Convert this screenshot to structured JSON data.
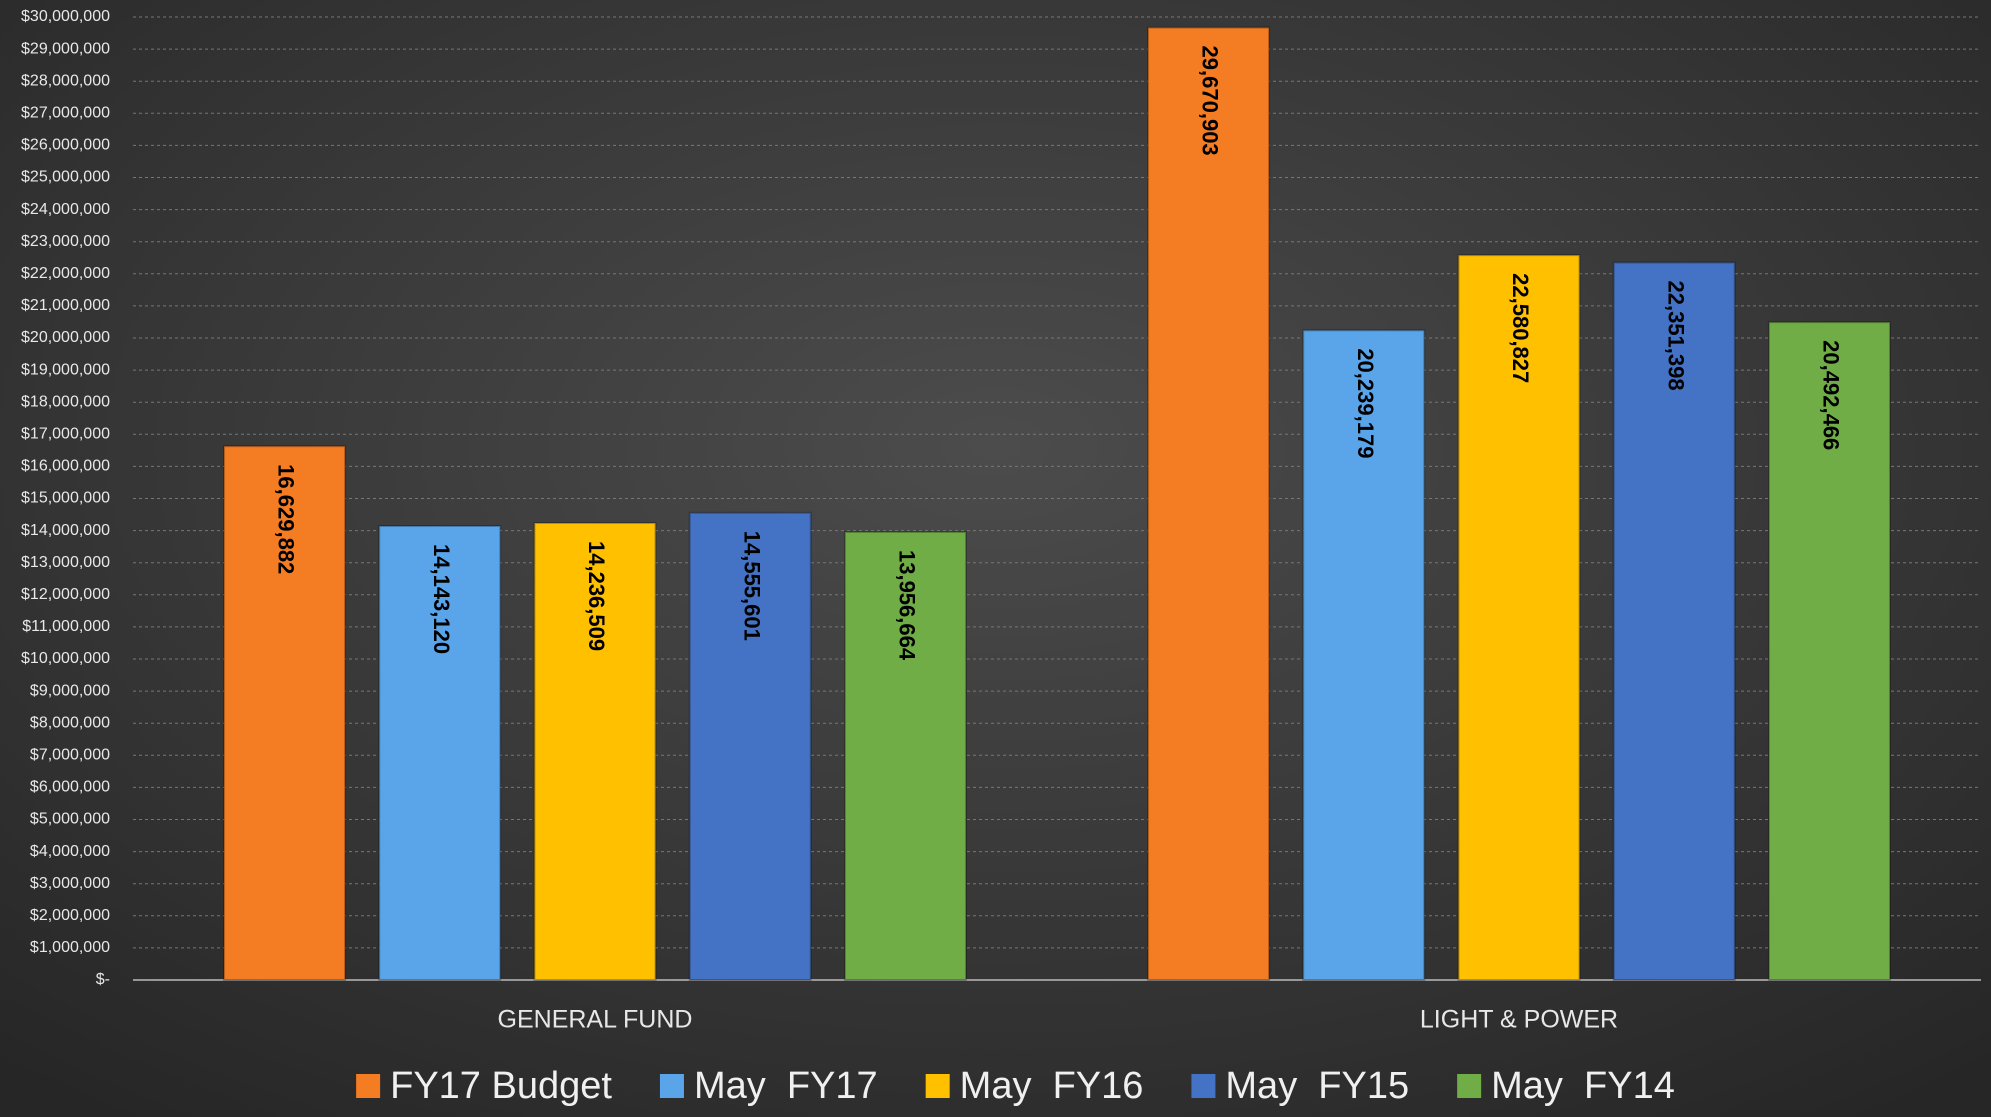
{
  "chart_data": {
    "type": "bar",
    "categories": [
      "GENERAL FUND",
      "LIGHT & POWER"
    ],
    "series": [
      {
        "name": "FY17 Budget",
        "color": "#f47c22",
        "values": [
          16629882,
          29670903
        ],
        "value_labels": [
          "16,629,882",
          "29,670,903"
        ]
      },
      {
        "name": "May  FY17",
        "color": "#5aa5ea",
        "values": [
          14143120,
          20239179
        ],
        "value_labels": [
          "14,143,120",
          "20,239,179"
        ]
      },
      {
        "name": "May  FY16",
        "color": "#ffc000",
        "values": [
          14236509,
          22580827
        ],
        "value_labels": [
          "14,236,509",
          "22,580,827"
        ]
      },
      {
        "name": "May  FY15",
        "color": "#4472c4",
        "values": [
          14555601,
          22351398
        ],
        "value_labels": [
          "14,555,601",
          "22,351,398"
        ]
      },
      {
        "name": "May  FY14",
        "color": "#70ad47",
        "values": [
          13956664,
          20492466
        ],
        "value_labels": [
          "13,956,664",
          "20,492,466"
        ]
      }
    ],
    "ylim": [
      0,
      30000000
    ],
    "yticks": [
      {
        "value": 0,
        "label": "$-"
      },
      {
        "value": 1000000,
        "label": "$1,000,000"
      },
      {
        "value": 2000000,
        "label": "$2,000,000"
      },
      {
        "value": 3000000,
        "label": "$3,000,000"
      },
      {
        "value": 4000000,
        "label": "$4,000,000"
      },
      {
        "value": 5000000,
        "label": "$5,000,000"
      },
      {
        "value": 6000000,
        "label": "$6,000,000"
      },
      {
        "value": 7000000,
        "label": "$7,000,000"
      },
      {
        "value": 8000000,
        "label": "$8,000,000"
      },
      {
        "value": 9000000,
        "label": "$9,000,000"
      },
      {
        "value": 10000000,
        "label": "$10,000,000"
      },
      {
        "value": 11000000,
        "label": "$11,000,000"
      },
      {
        "value": 12000000,
        "label": "$12,000,000"
      },
      {
        "value": 13000000,
        "label": "$13,000,000"
      },
      {
        "value": 14000000,
        "label": "$14,000,000"
      },
      {
        "value": 15000000,
        "label": "$15,000,000"
      },
      {
        "value": 16000000,
        "label": "$16,000,000"
      },
      {
        "value": 17000000,
        "label": "$17,000,000"
      },
      {
        "value": 18000000,
        "label": "$18,000,000"
      },
      {
        "value": 19000000,
        "label": "$19,000,000"
      },
      {
        "value": 20000000,
        "label": "$20,000,000"
      },
      {
        "value": 21000000,
        "label": "$21,000,000"
      },
      {
        "value": 22000000,
        "label": "$22,000,000"
      },
      {
        "value": 23000000,
        "label": "$23,000,000"
      },
      {
        "value": 24000000,
        "label": "$24,000,000"
      },
      {
        "value": 25000000,
        "label": "$25,000,000"
      },
      {
        "value": 26000000,
        "label": "$26,000,000"
      },
      {
        "value": 27000000,
        "label": "$27,000,000"
      },
      {
        "value": 28000000,
        "label": "$28,000,000"
      },
      {
        "value": 29000000,
        "label": "$29,000,000"
      },
      {
        "value": 30000000,
        "label": "$30,000,000"
      }
    ],
    "grid": true,
    "legend": "bottom"
  }
}
